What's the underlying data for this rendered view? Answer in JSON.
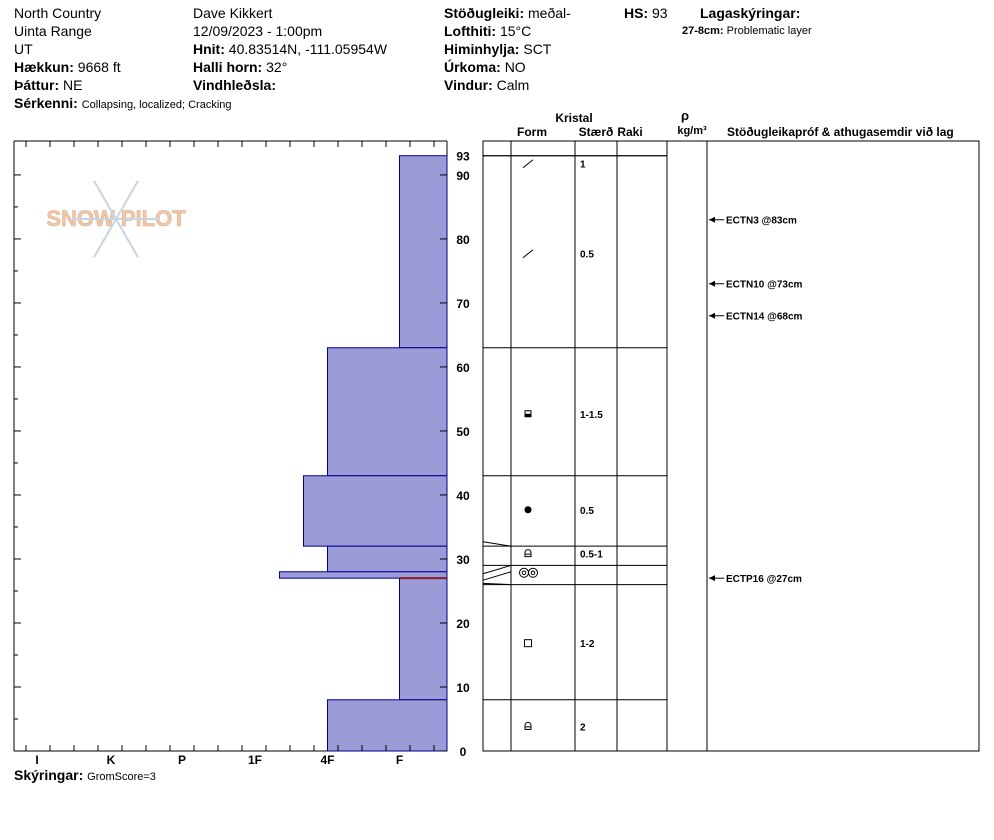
{
  "header": {
    "location": "North Country",
    "range": "Uinta Range",
    "state": "UT",
    "elevation_label": "Hækkun:",
    "elevation": "9668 ft",
    "aspect_label": "Þáttur:",
    "aspect": "NE",
    "features_label": "Sérkenni:",
    "features": "Collapsing, localized; Cracking",
    "observer": "Dave Kikkert",
    "datetime": "12/09/2023 - 1:00pm",
    "coords_label": "Hnit:",
    "coords": "40.83514N, -111.05954W",
    "slope_label": "Halli horn:",
    "slope": "32°",
    "wind_loading_label": "Vindhleðsla:",
    "wind_loading": "",
    "stability_label": "Stöðugleiki:",
    "stability": "meðal-",
    "air_temp_label": "Lofthiti:",
    "air_temp": "15°C",
    "sky_label": "Himinhylja:",
    "sky": "SCT",
    "precip_label": "Úrkoma:",
    "precip": "NO",
    "wind_label": "Vindur:",
    "wind": "Calm",
    "hs_label": "HS:",
    "hs": "93",
    "layer_notes_label": "Lagaskýringar:",
    "layer_notes": [
      {
        "range": "27-8cm:",
        "text": "Problematic layer"
      }
    ]
  },
  "footer": {
    "notes_label": "Skýringar:",
    "notes": "GromScore=3"
  },
  "logo_text": "SNOW PILOT",
  "colors": {
    "bar_fill": "#9b9bd8",
    "bar_stroke": "#00008b",
    "problem_layer": "#8b1a2b",
    "logo": "#f0c8a8",
    "flake": "#c8d4e0"
  },
  "table_headers": {
    "crystal": "Kristal",
    "form": "Form",
    "size": "Stærð",
    "moisture": "Raki",
    "rho": "ρ",
    "density": "kg/m³",
    "tests": "Stöðugleikapróf & athugasemdir við lag"
  },
  "chart_data": {
    "type": "bar",
    "description_axes": "hardness (horizontal) vs height in cm (vertical)",
    "hardness_ticks": [
      "I",
      "K",
      "P",
      "1F",
      "4F",
      "F"
    ],
    "height_ticks": [
      0,
      10,
      20,
      30,
      40,
      50,
      60,
      70,
      80,
      90
    ],
    "height_top_label": "93",
    "ylim": [
      0,
      93
    ],
    "layers": [
      {
        "top": 93,
        "bottom": 63,
        "hardness": "F"
      },
      {
        "top": 63,
        "bottom": 43,
        "hardness": "4F"
      },
      {
        "top": 43,
        "bottom": 32,
        "hardness": "4F+"
      },
      {
        "top": 32,
        "bottom": 28,
        "hardness": "4F"
      },
      {
        "top": 28,
        "bottom": 27,
        "hardness": "1F-"
      },
      {
        "top": 27,
        "bottom": 8,
        "hardness": "F"
      },
      {
        "top": 8,
        "bottom": 0,
        "hardness": "4F"
      }
    ],
    "problem_layer_at": 27,
    "grain_rows": [
      {
        "top": 93,
        "bottom": 93,
        "form": "ppgp",
        "size": "1"
      },
      {
        "top": 93,
        "bottom": 63,
        "form": "ppgp",
        "size": "0.5"
      },
      {
        "top": 63,
        "bottom": 43,
        "form": "fcxr",
        "size": "1-1.5"
      },
      {
        "top": 43,
        "bottom": 32,
        "form": "mf",
        "size": "0.5"
      },
      {
        "top": 32,
        "bottom": 29,
        "form": "dh",
        "size": "0.5-1"
      },
      {
        "top": 29,
        "bottom": 26,
        "form": "mfcl",
        "size": ""
      },
      {
        "top": 26,
        "bottom": 8,
        "form": "fc",
        "size": "1-2"
      },
      {
        "top": 8,
        "bottom": 0,
        "form": "dh",
        "size": "2"
      }
    ],
    "tests": [
      {
        "height": 83,
        "label": "ECTN3 @83cm"
      },
      {
        "height": 73,
        "label": "ECTN10 @73cm"
      },
      {
        "height": 68,
        "label": "ECTN14 @68cm"
      },
      {
        "height": 27,
        "label": "ECTP16 @27cm"
      }
    ]
  }
}
